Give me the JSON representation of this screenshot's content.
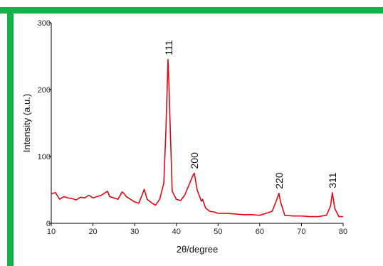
{
  "chart_data": {
    "type": "line",
    "title": "",
    "xlabel": "2θ/degree",
    "ylabel": "Intensity (a.u.)",
    "xlim": [
      10,
      80
    ],
    "ylim": [
      0,
      300
    ],
    "xticks": [
      10,
      20,
      30,
      40,
      50,
      60,
      70,
      80
    ],
    "yticks": [
      0,
      100,
      200,
      300
    ],
    "grid": false,
    "series": [
      {
        "color": "#e30613",
        "x": [
          10,
          11,
          12,
          13,
          14,
          15,
          16,
          17,
          18,
          19,
          20,
          21,
          22,
          23,
          23.5,
          24,
          25,
          26,
          27,
          27.5,
          28,
          29,
          30,
          31,
          32,
          32.3,
          33,
          34,
          35,
          36,
          37,
          37.5,
          38,
          38.2,
          38.5,
          39,
          40,
          41,
          42,
          43,
          44,
          44.3,
          45,
          46,
          46.3,
          47,
          48,
          49,
          50,
          52,
          54,
          56,
          58,
          60,
          62,
          63,
          64,
          64.6,
          65,
          66,
          68,
          70,
          72,
          74,
          76,
          77,
          77.4,
          78,
          79,
          80
        ],
        "y": [
          44,
          46,
          36,
          40,
          38,
          37,
          35,
          39,
          38,
          42,
          38,
          40,
          42,
          46,
          48,
          40,
          38,
          36,
          47,
          44,
          40,
          36,
          32,
          30,
          46,
          51,
          36,
          31,
          27,
          36,
          60,
          140,
          245,
          212,
          150,
          48,
          36,
          34,
          42,
          57,
          72,
          75,
          50,
          33,
          36,
          23,
          18,
          17,
          15,
          15,
          14,
          13,
          13,
          12,
          16,
          18,
          34,
          45,
          32,
          12,
          11,
          11,
          10,
          10,
          12,
          26,
          46,
          22,
          10,
          10
        ]
      }
    ],
    "annotations": [
      {
        "text": "111",
        "x": 38.2,
        "y": 245
      },
      {
        "text": "200",
        "x": 44.3,
        "y": 75
      },
      {
        "text": "220",
        "x": 64.6,
        "y": 45
      },
      {
        "text": "311",
        "x": 77.4,
        "y": 46
      }
    ]
  }
}
